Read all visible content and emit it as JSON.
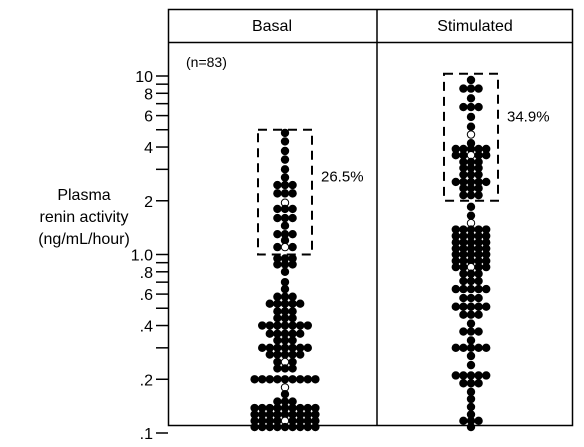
{
  "chart_data": {
    "type": "scatter",
    "subtype": "dot-plot",
    "yscale": "log",
    "ylim": [
      0.1,
      10
    ],
    "ylabel": [
      "Plasma",
      "renin activity",
      "(ng/mL/hour)"
    ],
    "yticks": [
      {
        "value": 10,
        "label": "10"
      },
      {
        "value": 8,
        "label": "8"
      },
      {
        "value": 6,
        "label": "6"
      },
      {
        "value": 4,
        "label": "4"
      },
      {
        "value": 2,
        "label": "2"
      },
      {
        "value": 1.0,
        "label": "1.0"
      },
      {
        "value": 0.8,
        "label": ".8"
      },
      {
        "value": 0.6,
        "label": ".6"
      },
      {
        "value": 0.4,
        "label": ".4"
      },
      {
        "value": 0.2,
        "label": ".2"
      },
      {
        "value": 0.1,
        "label": ".1"
      }
    ],
    "minor_ticks": [
      3,
      5,
      7,
      9,
      0.3,
      0.5,
      0.7,
      0.9
    ],
    "n_label": "(n=83)",
    "panels": [
      {
        "name": "Basal",
        "box": {
          "ymin": 1.0,
          "ymax": 5.0,
          "label": "26.5%"
        },
        "points": [
          {
            "y": 4.8,
            "n": 1,
            "o": []
          },
          {
            "y": 4.3,
            "n": 1,
            "o": []
          },
          {
            "y": 3.8,
            "n": 1,
            "o": []
          },
          {
            "y": 3.4,
            "n": 1,
            "o": []
          },
          {
            "y": 3.0,
            "n": 1,
            "o": []
          },
          {
            "y": 2.7,
            "n": 1,
            "o": []
          },
          {
            "y": 2.45,
            "n": 3,
            "o": []
          },
          {
            "y": 2.2,
            "n": 3,
            "o": []
          },
          {
            "y": 1.95,
            "n": 1,
            "o": [
              0
            ]
          },
          {
            "y": 1.8,
            "n": 3,
            "o": []
          },
          {
            "y": 1.6,
            "n": 3,
            "o": []
          },
          {
            "y": 1.45,
            "n": 1,
            "o": []
          },
          {
            "y": 1.3,
            "n": 3,
            "o": []
          },
          {
            "y": 1.2,
            "n": 1,
            "o": []
          },
          {
            "y": 1.1,
            "n": 3,
            "o": [
              1
            ]
          },
          {
            "y": 0.95,
            "n": 3,
            "o": []
          },
          {
            "y": 0.88,
            "n": 3,
            "o": []
          },
          {
            "y": 0.8,
            "n": 1,
            "o": []
          },
          {
            "y": 0.7,
            "n": 1,
            "o": []
          },
          {
            "y": 0.64,
            "n": 1,
            "o": []
          },
          {
            "y": 0.58,
            "n": 3,
            "o": []
          },
          {
            "y": 0.53,
            "n": 5,
            "o": []
          },
          {
            "y": 0.48,
            "n": 3,
            "o": []
          },
          {
            "y": 0.44,
            "n": 3,
            "o": []
          },
          {
            "y": 0.4,
            "n": 7,
            "o": []
          },
          {
            "y": 0.36,
            "n": 5,
            "o": []
          },
          {
            "y": 0.33,
            "n": 3,
            "o": []
          },
          {
            "y": 0.3,
            "n": 7,
            "o": []
          },
          {
            "y": 0.275,
            "n": 5,
            "o": []
          },
          {
            "y": 0.25,
            "n": 3,
            "o": [
              1
            ]
          },
          {
            "y": 0.23,
            "n": 3,
            "o": []
          },
          {
            "y": 0.2,
            "n": 9,
            "o": []
          },
          {
            "y": 0.18,
            "n": 1,
            "o": [
              0
            ]
          },
          {
            "y": 0.165,
            "n": 1,
            "o": []
          },
          {
            "y": 0.15,
            "n": 3,
            "o": []
          },
          {
            "y": 0.138,
            "n": 9,
            "o": []
          },
          {
            "y": 0.127,
            "n": 9,
            "o": []
          },
          {
            "y": 0.117,
            "n": 9,
            "o": [
              4
            ]
          },
          {
            "y": 0.108,
            "n": 9,
            "o": []
          }
        ]
      },
      {
        "name": "Stimulated",
        "box": {
          "ymin": 2.0,
          "ymax": 10.3,
          "label": "34.9%"
        },
        "points": [
          {
            "y": 9.5,
            "n": 1,
            "o": []
          },
          {
            "y": 8.5,
            "n": 3,
            "o": []
          },
          {
            "y": 7.5,
            "n": 1,
            "o": []
          },
          {
            "y": 6.7,
            "n": 3,
            "o": []
          },
          {
            "y": 5.9,
            "n": 1,
            "o": []
          },
          {
            "y": 5.2,
            "n": 1,
            "o": []
          },
          {
            "y": 4.7,
            "n": 1,
            "o": [
              0
            ]
          },
          {
            "y": 4.2,
            "n": 1,
            "o": []
          },
          {
            "y": 3.9,
            "n": 5,
            "o": []
          },
          {
            "y": 3.6,
            "n": 5,
            "o": [
              2
            ]
          },
          {
            "y": 3.3,
            "n": 3,
            "o": []
          },
          {
            "y": 3.05,
            "n": 3,
            "o": []
          },
          {
            "y": 2.8,
            "n": 3,
            "o": []
          },
          {
            "y": 2.55,
            "n": 5,
            "o": []
          },
          {
            "y": 2.35,
            "n": 3,
            "o": []
          },
          {
            "y": 2.15,
            "n": 3,
            "o": []
          },
          {
            "y": 1.85,
            "n": 1,
            "o": []
          },
          {
            "y": 1.65,
            "n": 1,
            "o": []
          },
          {
            "y": 1.5,
            "n": 1,
            "o": [
              0
            ]
          },
          {
            "y": 1.38,
            "n": 5,
            "o": []
          },
          {
            "y": 1.27,
            "n": 5,
            "o": []
          },
          {
            "y": 1.17,
            "n": 5,
            "o": []
          },
          {
            "y": 1.08,
            "n": 5,
            "o": []
          },
          {
            "y": 1.0,
            "n": 5,
            "o": []
          },
          {
            "y": 0.92,
            "n": 5,
            "o": []
          },
          {
            "y": 0.85,
            "n": 5,
            "o": [
              2
            ]
          },
          {
            "y": 0.78,
            "n": 3,
            "o": []
          },
          {
            "y": 0.71,
            "n": 3,
            "o": []
          },
          {
            "y": 0.64,
            "n": 5,
            "o": []
          },
          {
            "y": 0.57,
            "n": 3,
            "o": []
          },
          {
            "y": 0.51,
            "n": 5,
            "o": []
          },
          {
            "y": 0.46,
            "n": 3,
            "o": []
          },
          {
            "y": 0.41,
            "n": 1,
            "o": []
          },
          {
            "y": 0.37,
            "n": 3,
            "o": []
          },
          {
            "y": 0.33,
            "n": 1,
            "o": []
          },
          {
            "y": 0.3,
            "n": 5,
            "o": []
          },
          {
            "y": 0.27,
            "n": 1,
            "o": []
          },
          {
            "y": 0.24,
            "n": 1,
            "o": []
          },
          {
            "y": 0.21,
            "n": 5,
            "o": []
          },
          {
            "y": 0.19,
            "n": 3,
            "o": []
          },
          {
            "y": 0.17,
            "n": 1,
            "o": []
          },
          {
            "y": 0.155,
            "n": 1,
            "o": []
          },
          {
            "y": 0.14,
            "n": 1,
            "o": []
          },
          {
            "y": 0.127,
            "n": 1,
            "o": []
          },
          {
            "y": 0.117,
            "n": 3,
            "o": []
          },
          {
            "y": 0.108,
            "n": 1,
            "o": []
          }
        ]
      }
    ]
  }
}
